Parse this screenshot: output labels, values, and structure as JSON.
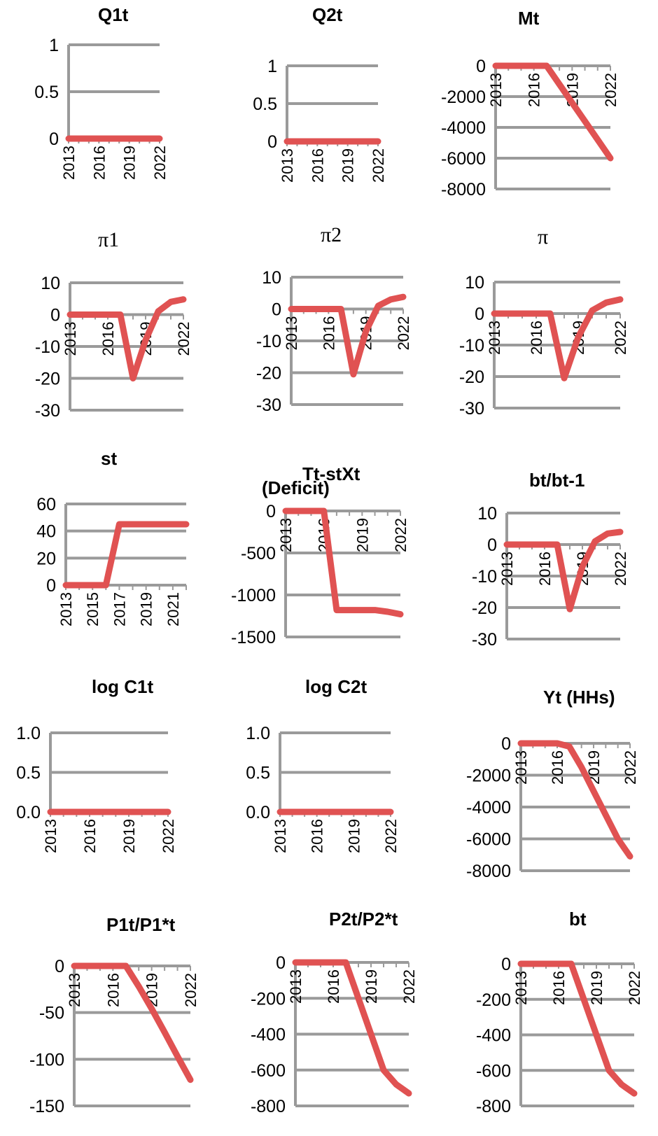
{
  "colors": {
    "series": "#e05252",
    "grid": "#9a9a9a"
  },
  "chart_data": [
    {
      "type": "line",
      "title": "Q1t",
      "ylim": [
        0,
        1
      ],
      "yticks": [
        "1",
        "0.5",
        "0"
      ],
      "ytick_values": [
        1,
        0.5,
        0
      ],
      "x": [
        2013,
        2014,
        2015,
        2016,
        2017,
        2018,
        2019,
        2020,
        2021,
        2022
      ],
      "xticks": [
        "2013",
        "2016",
        "2019",
        "2022"
      ],
      "series": [
        {
          "values": [
            0,
            0,
            0,
            0,
            0,
            0,
            0,
            0,
            0,
            0
          ]
        }
      ]
    },
    {
      "type": "line",
      "title": "Q2t",
      "ylim": [
        0,
        1
      ],
      "yticks": [
        "1",
        "0.5",
        "0"
      ],
      "ytick_values": [
        1,
        0.5,
        0
      ],
      "x": [
        2013,
        2014,
        2015,
        2016,
        2017,
        2018,
        2019,
        2020,
        2021,
        2022
      ],
      "xticks": [
        "2013",
        "2016",
        "2019",
        "2022"
      ],
      "series": [
        {
          "values": [
            0,
            0,
            0,
            0,
            0,
            0,
            0,
            0,
            0,
            0
          ]
        }
      ]
    },
    {
      "type": "line",
      "title": "Mt",
      "ylim": [
        -8000,
        0
      ],
      "yticks": [
        "0",
        "-2000",
        "-4000",
        "-6000",
        "-8000"
      ],
      "ytick_values": [
        0,
        -2000,
        -4000,
        -6000,
        -8000
      ],
      "x": [
        2013,
        2014,
        2015,
        2016,
        2017,
        2018,
        2019,
        2020,
        2021,
        2022
      ],
      "xticks": [
        "2013",
        "2016",
        "2019",
        "2022"
      ],
      "series": [
        {
          "values": [
            0,
            0,
            0,
            0,
            0,
            -1200,
            -2400,
            -3600,
            -4800,
            -6000
          ]
        }
      ]
    },
    {
      "type": "line",
      "title": "π1",
      "ylim": [
        -30,
        10
      ],
      "yticks": [
        "10",
        "0",
        "-10",
        "-20",
        "-30"
      ],
      "ytick_values": [
        10,
        0,
        -10,
        -20,
        -30
      ],
      "x": [
        2013,
        2014,
        2015,
        2016,
        2017,
        2018,
        2019,
        2020,
        2021,
        2022
      ],
      "xticks": [
        "2013",
        "2016",
        "2019",
        "2022"
      ],
      "series": [
        {
          "values": [
            0,
            0,
            0,
            0,
            0,
            -20,
            -8,
            1,
            4,
            4.8
          ]
        }
      ]
    },
    {
      "type": "line",
      "title": "π2",
      "ylim": [
        -30,
        10
      ],
      "yticks": [
        "10",
        "0",
        "-10",
        "-20",
        "-30"
      ],
      "ytick_values": [
        10,
        0,
        -10,
        -20,
        -30
      ],
      "x": [
        2013,
        2014,
        2015,
        2016,
        2017,
        2018,
        2019,
        2020,
        2021,
        2022
      ],
      "xticks": [
        "2013",
        "2016",
        "2019",
        "2022"
      ],
      "series": [
        {
          "values": [
            0,
            0,
            0,
            0,
            0,
            -20.5,
            -7,
            1,
            3,
            3.8
          ]
        }
      ]
    },
    {
      "type": "line",
      "title": "π",
      "ylim": [
        -30,
        10
      ],
      "yticks": [
        "10",
        "0",
        "-10",
        "-20",
        "-30"
      ],
      "ytick_values": [
        10,
        0,
        -10,
        -20,
        -30
      ],
      "x": [
        2013,
        2014,
        2015,
        2016,
        2017,
        2018,
        2019,
        2020,
        2021,
        2022
      ],
      "xticks": [
        "2013",
        "2016",
        "2019",
        "2022"
      ],
      "series": [
        {
          "values": [
            0,
            0,
            0,
            0,
            0,
            -20.5,
            -7.5,
            1,
            3.5,
            4.5
          ]
        }
      ]
    },
    {
      "type": "line",
      "title": "st",
      "ylim": [
        0,
        60
      ],
      "yticks": [
        "60",
        "40",
        "20",
        "0"
      ],
      "ytick_values": [
        60,
        40,
        20,
        0
      ],
      "x": [
        2013,
        2014,
        2015,
        2016,
        2017,
        2018,
        2019,
        2020,
        2021,
        2022
      ],
      "xticks": [
        "2013",
        "2015",
        "2017",
        "2019",
        "2021"
      ],
      "series": [
        {
          "values": [
            0,
            0,
            0,
            0,
            45,
            45,
            45,
            45,
            45,
            45
          ]
        }
      ]
    },
    {
      "type": "line",
      "title": "Tt-stXt",
      "title2": "(Deficit)",
      "ylim": [
        -1500,
        0
      ],
      "yticks": [
        "0",
        "-500",
        "-1000",
        "-1500"
      ],
      "ytick_values": [
        0,
        -500,
        -1000,
        -1500
      ],
      "x": [
        2013,
        2014,
        2015,
        2016,
        2017,
        2018,
        2019,
        2020,
        2021,
        2022
      ],
      "xticks": [
        "2013",
        "2016",
        "2019",
        "2022"
      ],
      "series": [
        {
          "values": [
            0,
            0,
            0,
            0,
            -1180,
            -1180,
            -1180,
            -1180,
            -1200,
            -1230
          ]
        }
      ]
    },
    {
      "type": "line",
      "title": "bt/bt-1",
      "ylim": [
        -30,
        10
      ],
      "yticks": [
        "10",
        "0",
        "-10",
        "-20",
        "-30"
      ],
      "ytick_values": [
        10,
        0,
        -10,
        -20,
        -30
      ],
      "x": [
        2013,
        2014,
        2015,
        2016,
        2017,
        2018,
        2019,
        2020,
        2021,
        2022
      ],
      "xticks": [
        "2013",
        "2016",
        "2019",
        "2022"
      ],
      "series": [
        {
          "values": [
            0,
            0,
            0,
            0,
            0,
            -20.5,
            -7,
            1,
            3.5,
            4
          ]
        }
      ]
    },
    {
      "type": "line",
      "title": "log C1t",
      "ylim": [
        0,
        1
      ],
      "yticks": [
        "1.0",
        "0.5",
        "0.0"
      ],
      "ytick_values": [
        1,
        0.5,
        0
      ],
      "x": [
        2013,
        2014,
        2015,
        2016,
        2017,
        2018,
        2019,
        2020,
        2021,
        2022
      ],
      "xticks": [
        "2013",
        "2016",
        "2019",
        "2022"
      ],
      "series": [
        {
          "values": [
            0,
            0,
            0,
            0,
            0,
            0,
            0,
            0,
            0,
            0
          ]
        }
      ]
    },
    {
      "type": "line",
      "title": "log C2t",
      "ylim": [
        0,
        1
      ],
      "yticks": [
        "1.0",
        "0.5",
        "0.0"
      ],
      "ytick_values": [
        1,
        0.5,
        0
      ],
      "x": [
        2013,
        2014,
        2015,
        2016,
        2017,
        2018,
        2019,
        2020,
        2021,
        2022
      ],
      "xticks": [
        "2013",
        "2016",
        "2019",
        "2022"
      ],
      "series": [
        {
          "values": [
            0,
            0,
            0,
            0,
            0,
            0,
            0,
            0,
            0,
            0
          ]
        }
      ]
    },
    {
      "type": "line",
      "title": "Yt (HHs)",
      "ylim": [
        -8000,
        0
      ],
      "yticks": [
        "0",
        "-2000",
        "-4000",
        "-6000",
        "-8000"
      ],
      "ytick_values": [
        0,
        -2000,
        -4000,
        -6000,
        -8000
      ],
      "x": [
        2013,
        2014,
        2015,
        2016,
        2017,
        2018,
        2019,
        2020,
        2021,
        2022
      ],
      "xticks": [
        "2013",
        "2016",
        "2019",
        "2022"
      ],
      "series": [
        {
          "values": [
            0,
            0,
            0,
            0,
            -200,
            -1500,
            -3000,
            -4500,
            -6000,
            -7100
          ]
        }
      ]
    },
    {
      "type": "line",
      "title": "P1t/P1*t",
      "ylim": [
        -150,
        0
      ],
      "yticks": [
        "0",
        "-50",
        "-100",
        "-150"
      ],
      "ytick_values": [
        0,
        -50,
        -100,
        -150
      ],
      "x": [
        2013,
        2014,
        2015,
        2016,
        2017,
        2018,
        2019,
        2020,
        2021,
        2022
      ],
      "xticks": [
        "2013",
        "2016",
        "2019",
        "2022"
      ],
      "series": [
        {
          "values": [
            0,
            0,
            0,
            0,
            0,
            -22,
            -46,
            -71,
            -97,
            -122
          ]
        }
      ]
    },
    {
      "type": "line",
      "title": "P2t/P2*t",
      "ylim": [
        -800,
        0
      ],
      "yticks": [
        "0",
        "-200",
        "-400",
        "-600",
        "-800"
      ],
      "ytick_values": [
        0,
        -200,
        -400,
        -600,
        -800
      ],
      "x": [
        2013,
        2014,
        2015,
        2016,
        2017,
        2018,
        2019,
        2020,
        2021,
        2022
      ],
      "xticks": [
        "2013",
        "2016",
        "2019",
        "2022"
      ],
      "series": [
        {
          "values": [
            0,
            0,
            0,
            0,
            0,
            -200,
            -400,
            -600,
            -680,
            -730
          ]
        }
      ]
    },
    {
      "type": "line",
      "title": "bt",
      "ylim": [
        -800,
        0
      ],
      "yticks": [
        "0",
        "-200",
        "-400",
        "-600",
        "-800"
      ],
      "ytick_values": [
        0,
        -200,
        -400,
        -600,
        -800
      ],
      "x": [
        2013,
        2014,
        2015,
        2016,
        2017,
        2018,
        2019,
        2020,
        2021,
        2022
      ],
      "xticks": [
        "2013",
        "2016",
        "2019",
        "2022"
      ],
      "series": [
        {
          "values": [
            0,
            0,
            0,
            0,
            0,
            -200,
            -400,
            -600,
            -680,
            -730
          ]
        }
      ]
    }
  ]
}
